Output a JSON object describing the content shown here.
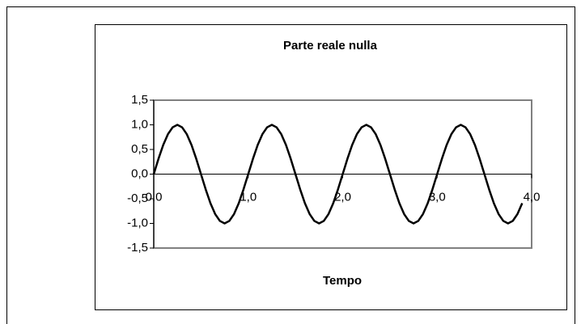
{
  "chart_data": {
    "type": "line",
    "title": "Parte reale nulla",
    "x_label": "Tempo",
    "x": [
      0,
      0.05,
      0.1,
      0.15,
      0.2,
      0.25,
      0.3,
      0.35,
      0.4,
      0.45,
      0.5,
      0.55,
      0.6,
      0.65,
      0.7,
      0.75,
      0.8,
      0.85,
      0.9,
      0.95,
      1,
      1.05,
      1.1,
      1.15,
      1.2,
      1.25,
      1.3,
      1.35,
      1.4,
      1.45,
      1.5,
      1.55,
      1.6,
      1.65,
      1.7,
      1.75,
      1.8,
      1.85,
      1.9,
      1.95,
      2,
      2.05,
      2.1,
      2.15,
      2.2,
      2.25,
      2.3,
      2.35,
      2.4,
      2.45,
      2.5,
      2.55,
      2.6,
      2.65,
      2.7,
      2.75,
      2.8,
      2.85,
      2.9,
      2.95,
      3,
      3.05,
      3.1,
      3.15,
      3.2,
      3.25,
      3.3,
      3.35,
      3.4,
      3.45,
      3.5,
      3.55,
      3.6,
      3.65,
      3.7,
      3.75,
      3.8,
      3.85,
      3.9
    ],
    "series": [
      {
        "color": "#000000",
        "values": [
          0,
          0.31,
          0.59,
          0.81,
          0.95,
          1,
          0.95,
          0.81,
          0.59,
          0.31,
          0,
          -0.31,
          -0.59,
          -0.81,
          -0.95,
          -1,
          -0.95,
          -0.81,
          -0.59,
          -0.31,
          0,
          0.31,
          0.59,
          0.81,
          0.95,
          1,
          0.95,
          0.81,
          0.59,
          0.31,
          0,
          -0.31,
          -0.59,
          -0.81,
          -0.95,
          -1,
          -0.95,
          -0.81,
          -0.59,
          -0.31,
          0,
          0.31,
          0.59,
          0.81,
          0.95,
          1,
          0.95,
          0.81,
          0.59,
          0.31,
          0,
          -0.31,
          -0.59,
          -0.81,
          -0.95,
          -1,
          -0.95,
          -0.81,
          -0.59,
          -0.31,
          0,
          0.31,
          0.59,
          0.81,
          0.95,
          1,
          0.95,
          0.81,
          0.59,
          0.31,
          0,
          -0.31,
          -0.59,
          -0.81,
          -0.95,
          -1,
          -0.95,
          -0.81,
          -0.59
        ]
      }
    ],
    "xlim": [
      0,
      4
    ],
    "xticks": [
      {
        "value": 0,
        "label": "0,0"
      },
      {
        "value": 1,
        "label": "1,0"
      },
      {
        "value": 2,
        "label": "2,0"
      },
      {
        "value": 3,
        "label": "3,0"
      },
      {
        "value": 4,
        "label": "4,0"
      }
    ],
    "ylim": [
      -1.5,
      1.5
    ],
    "yticks": [
      {
        "value": -1.5,
        "label": "-1,5"
      },
      {
        "value": -1,
        "label": "-1,0"
      },
      {
        "value": -0.5,
        "label": "-0,5"
      },
      {
        "value": 0,
        "label": "0,0"
      },
      {
        "value": 0.5,
        "label": "0,5"
      },
      {
        "value": 1,
        "label": "1,0"
      },
      {
        "value": 1.5,
        "label": "1,5"
      }
    ]
  }
}
